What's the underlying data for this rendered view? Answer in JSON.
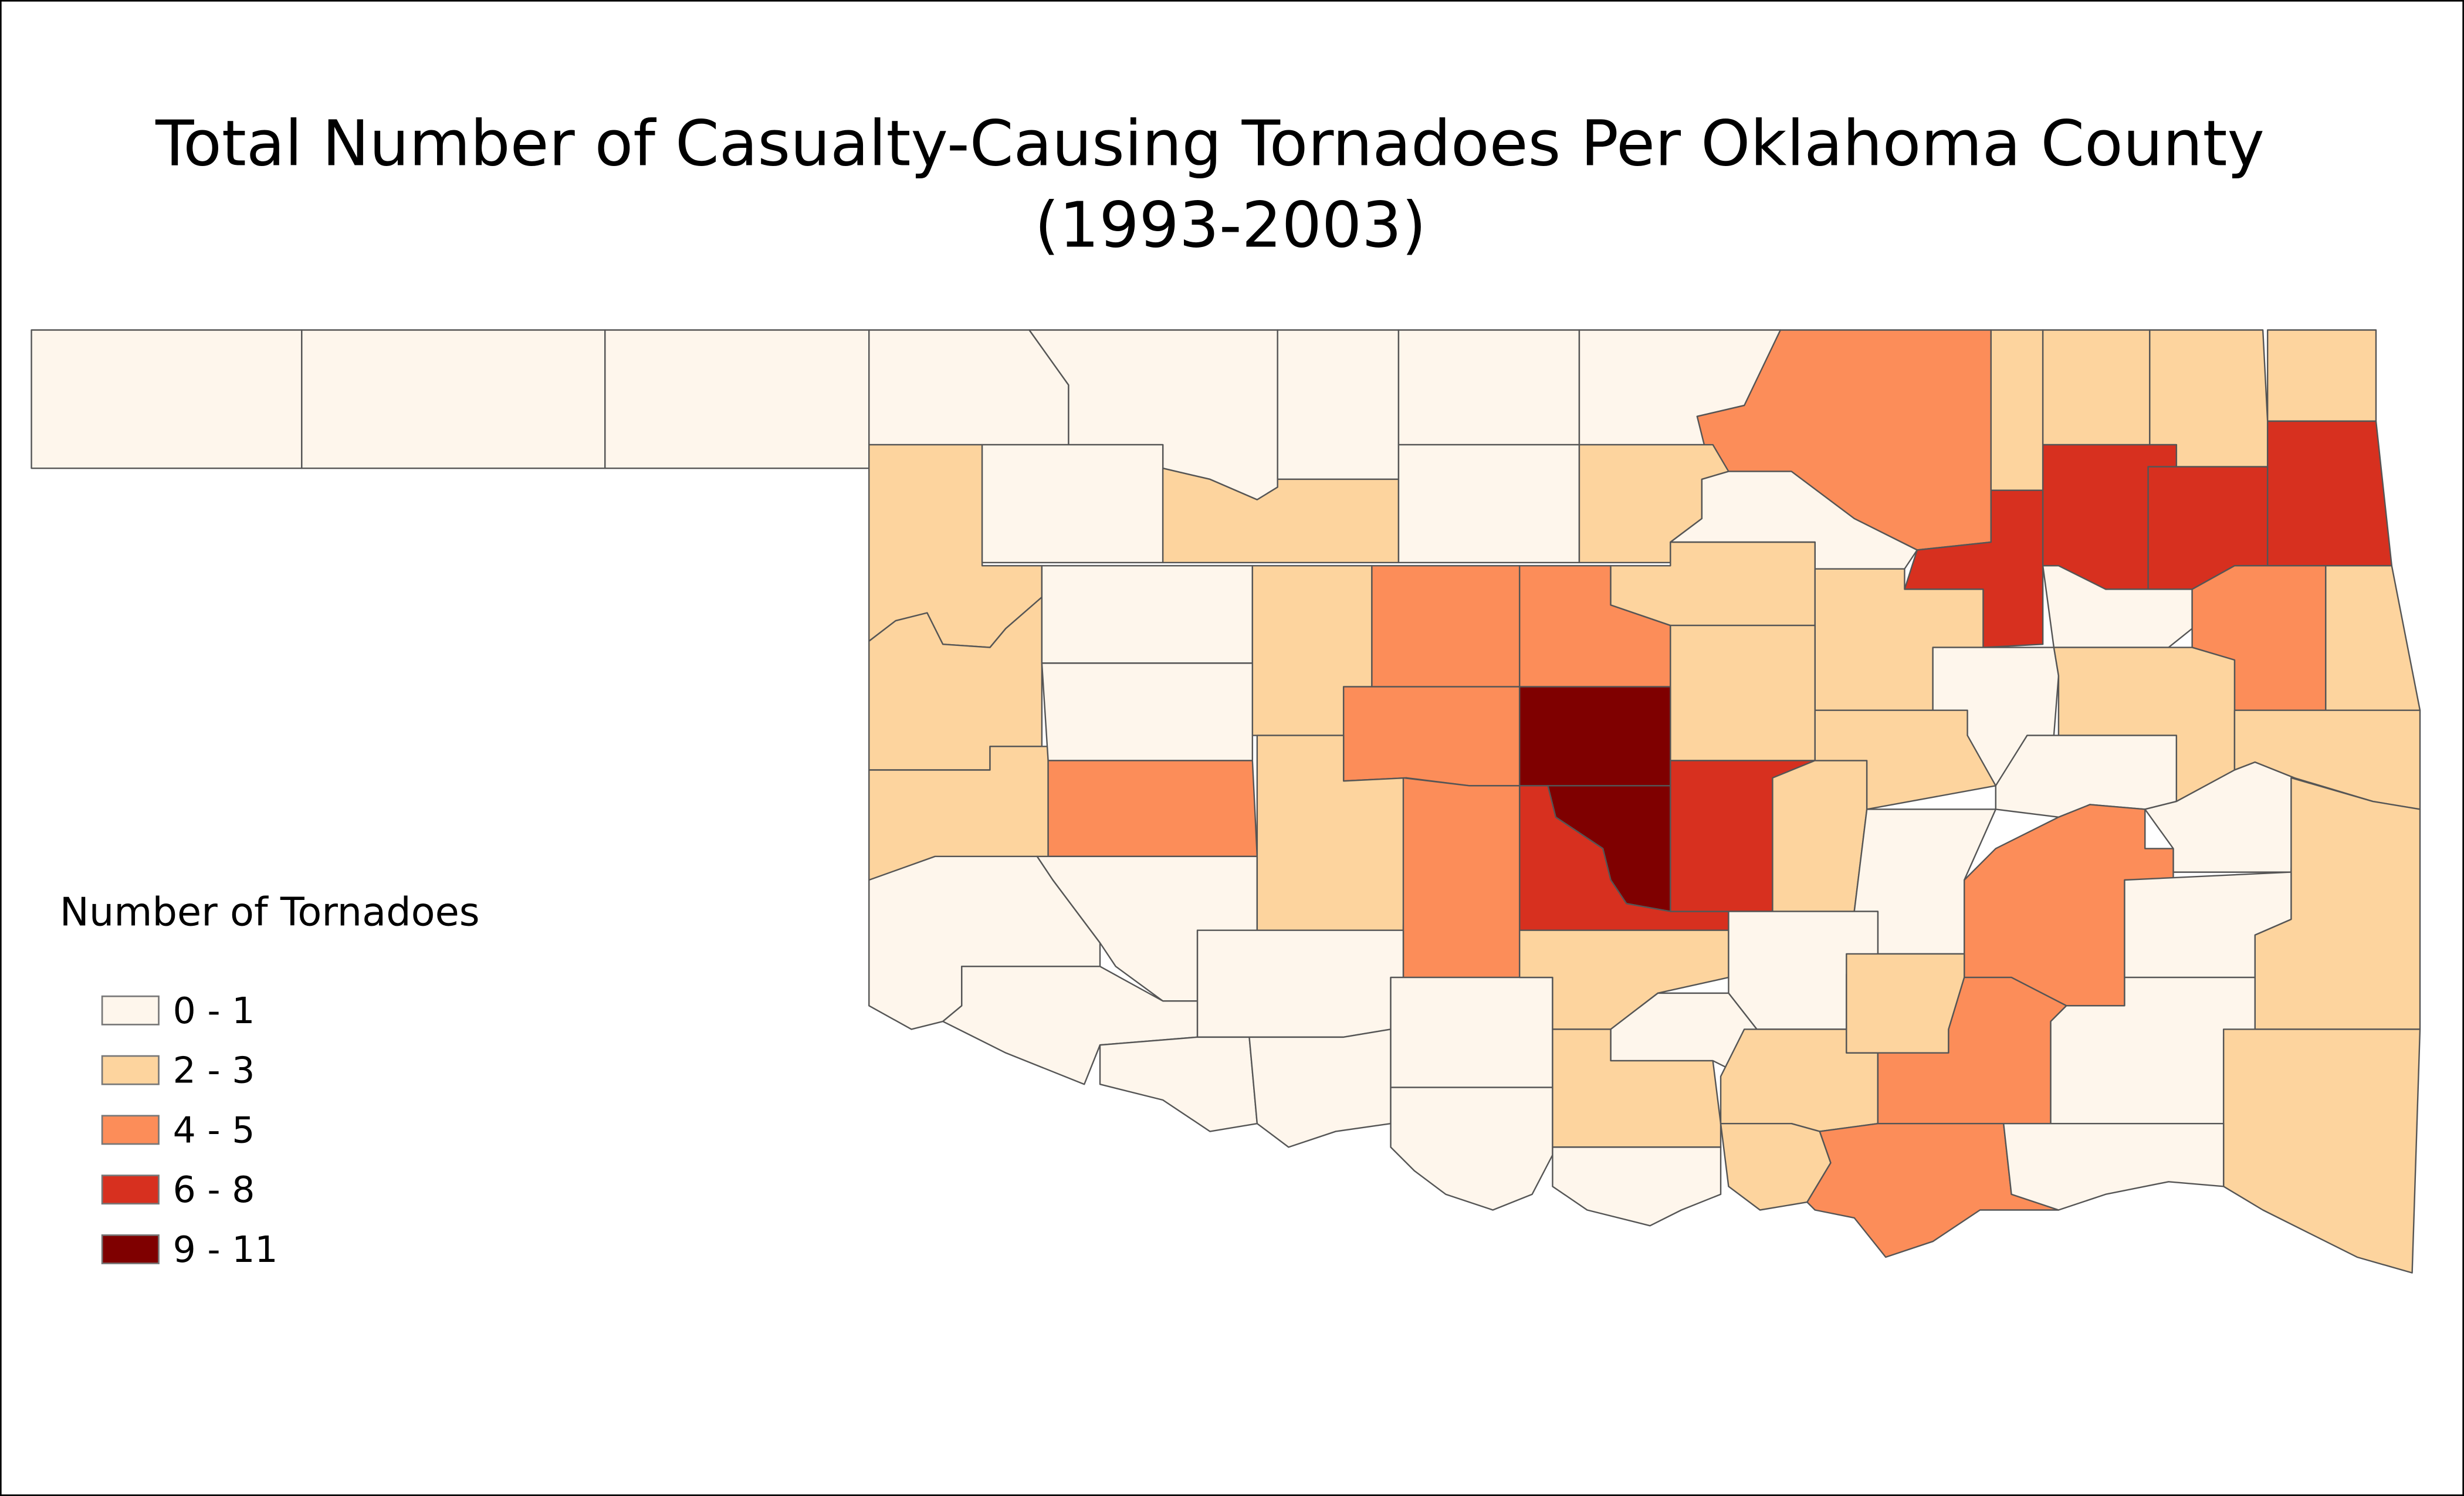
{
  "title_line1": "Total Number of Casualty-Causing Tornadoes Per Oklahoma County",
  "title_line2": "(1993-2003)",
  "legend": {
    "title": "Number of Tornadoes",
    "items": [
      {
        "label": "0 - 1",
        "color": "#fef6ec"
      },
      {
        "label": "2 - 3",
        "color": "#fdd49e"
      },
      {
        "label": "4 - 5",
        "color": "#fc8d59"
      },
      {
        "label": "6 - 8",
        "color": "#d7301f"
      },
      {
        "label": "9 - 11",
        "color": "#7f0000"
      }
    ]
  },
  "county_bins": [
    0,
    0,
    0,
    0,
    0,
    0,
    0,
    0,
    2,
    1,
    1,
    1,
    1,
    1,
    0,
    1,
    0,
    1,
    0,
    3,
    3,
    3,
    3,
    1,
    0,
    1,
    2,
    2,
    1,
    1,
    0,
    2,
    1,
    1,
    0,
    1,
    1,
    1,
    0,
    2,
    2,
    4,
    4,
    3,
    3,
    1,
    1,
    0,
    0,
    0,
    1,
    2,
    0,
    0,
    0,
    1,
    2,
    0,
    0,
    0,
    0,
    0,
    0,
    1,
    0,
    0,
    1,
    0,
    1,
    1,
    2,
    0,
    1,
    1,
    2,
    0
  ]
}
